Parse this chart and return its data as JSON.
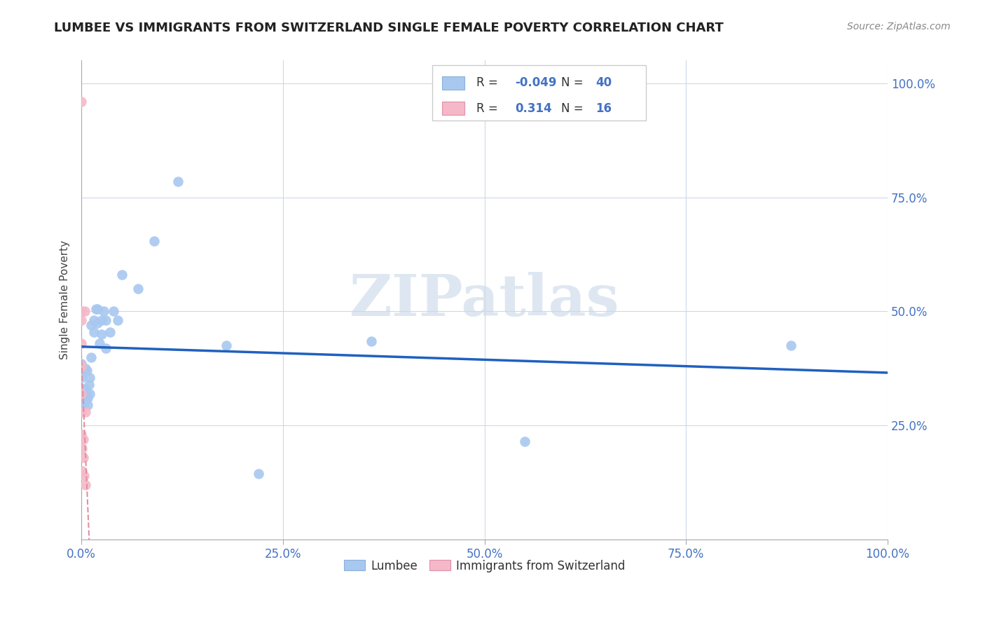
{
  "title": "LUMBEE VS IMMIGRANTS FROM SWITZERLAND SINGLE FEMALE POVERTY CORRELATION CHART",
  "source": "Source: ZipAtlas.com",
  "ylabel": "Single Female Poverty",
  "lumbee_R": -0.049,
  "lumbee_N": 40,
  "swiss_R": 0.314,
  "swiss_N": 16,
  "lumbee_color": "#a8c8f0",
  "swiss_color": "#f5b8c8",
  "trendline_blue_color": "#2060c0",
  "trendline_pink_color": "#e090a0",
  "tick_color": "#4472c4",
  "grid_color": "#d0d8e8",
  "watermark_color": "#c8d8e8",
  "lumbee_x": [
    0.0,
    0.0,
    0.0,
    0.002,
    0.003,
    0.004,
    0.005,
    0.005,
    0.006,
    0.007,
    0.008,
    0.008,
    0.009,
    0.01,
    0.01,
    0.012,
    0.012,
    0.015,
    0.015,
    0.018,
    0.02,
    0.02,
    0.022,
    0.025,
    0.025,
    0.028,
    0.03,
    0.03,
    0.035,
    0.04,
    0.045,
    0.05,
    0.07,
    0.09,
    0.12,
    0.18,
    0.22,
    0.36,
    0.55,
    0.88
  ],
  "lumbee_y": [
    0.355,
    0.37,
    0.385,
    0.295,
    0.315,
    0.33,
    0.375,
    0.305,
    0.32,
    0.37,
    0.295,
    0.31,
    0.34,
    0.32,
    0.355,
    0.4,
    0.47,
    0.455,
    0.48,
    0.505,
    0.475,
    0.505,
    0.43,
    0.48,
    0.45,
    0.5,
    0.48,
    0.42,
    0.455,
    0.5,
    0.48,
    0.58,
    0.55,
    0.655,
    0.785,
    0.425,
    0.145,
    0.435,
    0.215,
    0.425
  ],
  "swiss_x": [
    0.0,
    0.0,
    0.0,
    0.0,
    0.0,
    0.0,
    0.0,
    0.0,
    0.001,
    0.001,
    0.002,
    0.002,
    0.003,
    0.004,
    0.005,
    0.005
  ],
  "swiss_y": [
    0.96,
    0.5,
    0.48,
    0.43,
    0.38,
    0.32,
    0.28,
    0.23,
    0.2,
    0.15,
    0.22,
    0.18,
    0.14,
    0.5,
    0.28,
    0.12
  ],
  "xlim": [
    0.0,
    1.0
  ],
  "ylim": [
    0.0,
    1.05
  ],
  "x_ticks": [
    0.0,
    0.25,
    0.5,
    0.75,
    1.0
  ],
  "y_ticks": [
    0.0,
    0.25,
    0.5,
    0.75,
    1.0
  ],
  "x_tick_labels": [
    "0.0%",
    "25.0%",
    "50.0%",
    "75.0%",
    "100.0%"
  ],
  "y_tick_labels_right": [
    "",
    "25.0%",
    "50.0%",
    "75.0%",
    "100.0%"
  ]
}
